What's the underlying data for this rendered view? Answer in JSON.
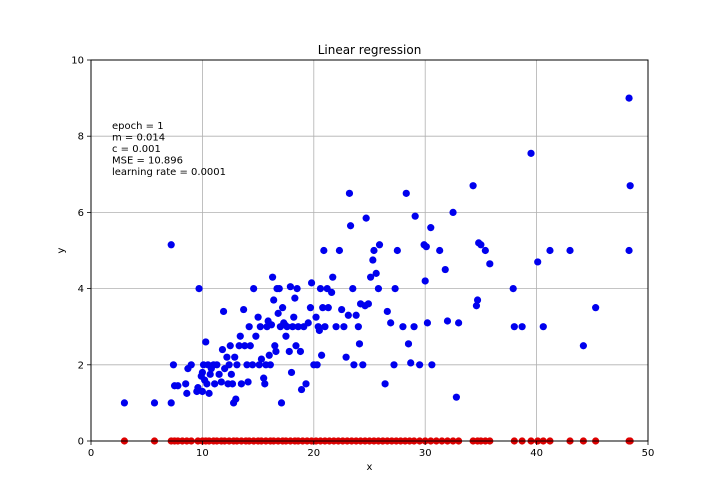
{
  "chart_data": {
    "type": "scatter",
    "title": "Linear regression",
    "xlabel": "x",
    "ylabel": "y",
    "xlim": [
      0,
      50
    ],
    "ylim": [
      0,
      10
    ],
    "xticks": [
      0,
      10,
      20,
      30,
      40,
      50
    ],
    "yticks": [
      0,
      2,
      4,
      6,
      8,
      10
    ],
    "grid": true,
    "annotations": [
      "epoch = 1",
      "m = 0.014",
      "c = 0.001",
      "MSE = 10.896",
      "learning rate = 0.0001"
    ],
    "series": [
      {
        "color": "#0000ee",
        "points": [
          [
            3.0,
            1.0
          ],
          [
            5.7,
            1.0
          ],
          [
            7.2,
            1.0
          ],
          [
            7.2,
            5.15
          ],
          [
            7.4,
            2.0
          ],
          [
            7.5,
            1.45
          ],
          [
            7.8,
            1.45
          ],
          [
            8.5,
            1.5
          ],
          [
            8.6,
            1.25
          ],
          [
            8.7,
            1.9
          ],
          [
            9.0,
            2.0
          ],
          [
            9.5,
            1.3
          ],
          [
            9.6,
            1.4
          ],
          [
            9.7,
            4.0
          ],
          [
            9.9,
            1.7
          ],
          [
            10.0,
            1.3
          ],
          [
            10.0,
            1.8
          ],
          [
            10.1,
            2.0
          ],
          [
            10.2,
            1.6
          ],
          [
            10.3,
            2.6
          ],
          [
            10.4,
            1.5
          ],
          [
            10.5,
            2.0
          ],
          [
            10.6,
            1.25
          ],
          [
            10.7,
            1.75
          ],
          [
            10.8,
            1.9
          ],
          [
            11.0,
            2.0
          ],
          [
            11.1,
            1.5
          ],
          [
            11.3,
            2.0
          ],
          [
            11.5,
            1.75
          ],
          [
            11.7,
            1.55
          ],
          [
            11.8,
            2.4
          ],
          [
            11.9,
            3.4
          ],
          [
            12.0,
            1.9
          ],
          [
            12.2,
            2.2
          ],
          [
            12.3,
            1.5
          ],
          [
            12.4,
            2.0
          ],
          [
            12.5,
            2.5
          ],
          [
            12.6,
            1.75
          ],
          [
            12.7,
            1.5
          ],
          [
            12.8,
            1.0
          ],
          [
            12.9,
            2.2
          ],
          [
            13.0,
            1.1
          ],
          [
            13.1,
            2.0
          ],
          [
            13.3,
            2.5
          ],
          [
            13.4,
            2.75
          ],
          [
            13.5,
            1.5
          ],
          [
            13.7,
            3.45
          ],
          [
            13.8,
            2.5
          ],
          [
            14.0,
            2.0
          ],
          [
            14.1,
            1.55
          ],
          [
            14.2,
            3.0
          ],
          [
            14.3,
            2.5
          ],
          [
            14.5,
            2.0
          ],
          [
            14.6,
            4.0
          ],
          [
            14.8,
            2.75
          ],
          [
            15.0,
            3.25
          ],
          [
            15.1,
            2.0
          ],
          [
            15.2,
            3.0
          ],
          [
            15.3,
            2.15
          ],
          [
            15.5,
            1.65
          ],
          [
            15.6,
            1.5
          ],
          [
            15.7,
            2.0
          ],
          [
            15.8,
            3.0
          ],
          [
            15.9,
            3.15
          ],
          [
            16.0,
            2.25
          ],
          [
            16.1,
            2.0
          ],
          [
            16.2,
            3.05
          ],
          [
            16.3,
            4.3
          ],
          [
            16.4,
            3.7
          ],
          [
            16.5,
            2.5
          ],
          [
            16.6,
            2.35
          ],
          [
            16.7,
            4.0
          ],
          [
            16.8,
            3.35
          ],
          [
            16.9,
            4.0
          ],
          [
            17.0,
            3.0
          ],
          [
            17.1,
            1.0
          ],
          [
            17.2,
            3.5
          ],
          [
            17.3,
            3.1
          ],
          [
            17.4,
            3.05
          ],
          [
            17.5,
            2.75
          ],
          [
            17.6,
            3.0
          ],
          [
            17.8,
            2.35
          ],
          [
            17.9,
            4.05
          ],
          [
            18.0,
            1.8
          ],
          [
            18.1,
            3.0
          ],
          [
            18.2,
            3.25
          ],
          [
            18.3,
            3.75
          ],
          [
            18.4,
            2.5
          ],
          [
            18.5,
            4.0
          ],
          [
            18.6,
            3.0
          ],
          [
            18.8,
            2.35
          ],
          [
            18.9,
            1.35
          ],
          [
            19.1,
            3.0
          ],
          [
            19.3,
            1.5
          ],
          [
            19.5,
            3.1
          ],
          [
            19.7,
            3.5
          ],
          [
            19.8,
            4.15
          ],
          [
            20.0,
            2.0
          ],
          [
            20.2,
            3.25
          ],
          [
            20.3,
            2.0
          ],
          [
            20.4,
            3.0
          ],
          [
            20.5,
            2.9
          ],
          [
            20.6,
            4.0
          ],
          [
            20.7,
            2.25
          ],
          [
            20.8,
            3.5
          ],
          [
            20.9,
            5.0
          ],
          [
            21.0,
            3.0
          ],
          [
            21.2,
            4.0
          ],
          [
            21.3,
            3.5
          ],
          [
            21.6,
            3.9
          ],
          [
            21.7,
            4.3
          ],
          [
            22.0,
            3.0
          ],
          [
            22.3,
            5.0
          ],
          [
            22.5,
            3.45
          ],
          [
            22.7,
            3.0
          ],
          [
            22.9,
            2.2
          ],
          [
            23.1,
            3.3
          ],
          [
            23.2,
            6.5
          ],
          [
            23.3,
            5.65
          ],
          [
            23.5,
            4.0
          ],
          [
            23.6,
            2.0
          ],
          [
            23.8,
            3.3
          ],
          [
            24.0,
            3.0
          ],
          [
            24.1,
            2.55
          ],
          [
            24.2,
            3.6
          ],
          [
            24.4,
            2.0
          ],
          [
            24.6,
            3.55
          ],
          [
            24.7,
            5.85
          ],
          [
            24.9,
            3.6
          ],
          [
            25.1,
            4.3
          ],
          [
            25.3,
            4.75
          ],
          [
            25.4,
            5.0
          ],
          [
            25.6,
            4.4
          ],
          [
            25.8,
            4.0
          ],
          [
            25.9,
            5.15
          ],
          [
            26.4,
            1.5
          ],
          [
            26.6,
            3.4
          ],
          [
            26.9,
            3.1
          ],
          [
            27.2,
            2.0
          ],
          [
            27.3,
            4.0
          ],
          [
            27.5,
            5.0
          ],
          [
            28.0,
            3.0
          ],
          [
            28.3,
            6.5
          ],
          [
            28.5,
            2.55
          ],
          [
            28.7,
            2.05
          ],
          [
            29.0,
            3.0
          ],
          [
            29.1,
            5.9
          ],
          [
            29.5,
            2.0
          ],
          [
            29.9,
            5.15
          ],
          [
            30.0,
            4.2
          ],
          [
            30.1,
            5.1
          ],
          [
            30.2,
            3.1
          ],
          [
            30.5,
            5.6
          ],
          [
            30.6,
            2.0
          ],
          [
            31.3,
            5.0
          ],
          [
            31.8,
            4.5
          ],
          [
            32.0,
            3.15
          ],
          [
            32.5,
            6.0
          ],
          [
            32.8,
            1.15
          ],
          [
            33.0,
            3.1
          ],
          [
            34.3,
            6.7
          ],
          [
            34.6,
            3.55
          ],
          [
            34.7,
            3.7
          ],
          [
            34.8,
            5.2
          ],
          [
            35.0,
            5.15
          ],
          [
            35.4,
            5.0
          ],
          [
            35.8,
            4.65
          ],
          [
            37.9,
            4.0
          ],
          [
            38.0,
            3.0
          ],
          [
            38.7,
            3.0
          ],
          [
            39.5,
            7.55
          ],
          [
            40.1,
            4.7
          ],
          [
            40.6,
            3.0
          ],
          [
            41.2,
            5.0
          ],
          [
            43.0,
            5.0
          ],
          [
            44.2,
            2.5
          ],
          [
            45.3,
            3.5
          ],
          [
            48.3,
            9.0
          ],
          [
            48.3,
            5.0
          ],
          [
            48.4,
            6.7
          ]
        ]
      },
      {
        "color": "#dd0000",
        "points": [
          [
            3.0,
            0.0
          ],
          [
            5.7,
            0.0
          ],
          [
            7.2,
            0.0
          ],
          [
            7.5,
            0.0
          ],
          [
            7.8,
            0.0
          ],
          [
            8.2,
            0.0
          ],
          [
            8.6,
            0.0
          ],
          [
            9.0,
            0.0
          ],
          [
            9.6,
            0.0
          ],
          [
            10.0,
            0.0
          ],
          [
            10.3,
            0.0
          ],
          [
            10.6,
            0.0
          ],
          [
            11.0,
            0.0
          ],
          [
            11.3,
            0.0
          ],
          [
            11.7,
            0.0
          ],
          [
            12.0,
            0.0
          ],
          [
            12.4,
            0.0
          ],
          [
            12.8,
            0.0
          ],
          [
            13.1,
            0.0
          ],
          [
            13.5,
            0.0
          ],
          [
            13.9,
            0.0
          ],
          [
            14.2,
            0.0
          ],
          [
            14.6,
            0.0
          ],
          [
            15.0,
            0.0
          ],
          [
            15.3,
            0.0
          ],
          [
            15.7,
            0.0
          ],
          [
            16.1,
            0.0
          ],
          [
            16.4,
            0.0
          ],
          [
            16.8,
            0.0
          ],
          [
            17.2,
            0.0
          ],
          [
            17.5,
            0.0
          ],
          [
            17.9,
            0.0
          ],
          [
            18.3,
            0.0
          ],
          [
            18.6,
            0.0
          ],
          [
            19.0,
            0.0
          ],
          [
            19.4,
            0.0
          ],
          [
            19.8,
            0.0
          ],
          [
            20.2,
            0.0
          ],
          [
            20.6,
            0.0
          ],
          [
            21.0,
            0.0
          ],
          [
            21.4,
            0.0
          ],
          [
            21.8,
            0.0
          ],
          [
            22.2,
            0.0
          ],
          [
            22.6,
            0.0
          ],
          [
            23.0,
            0.0
          ],
          [
            23.4,
            0.0
          ],
          [
            23.8,
            0.0
          ],
          [
            24.2,
            0.0
          ],
          [
            24.6,
            0.0
          ],
          [
            25.0,
            0.0
          ],
          [
            25.4,
            0.0
          ],
          [
            25.8,
            0.0
          ],
          [
            26.2,
            0.0
          ],
          [
            26.6,
            0.0
          ],
          [
            27.0,
            0.0
          ],
          [
            27.4,
            0.0
          ],
          [
            27.8,
            0.0
          ],
          [
            28.2,
            0.0
          ],
          [
            28.6,
            0.0
          ],
          [
            29.0,
            0.0
          ],
          [
            29.5,
            0.0
          ],
          [
            30.0,
            0.0
          ],
          [
            30.5,
            0.0
          ],
          [
            31.0,
            0.0
          ],
          [
            31.5,
            0.0
          ],
          [
            32.0,
            0.0
          ],
          [
            32.5,
            0.0
          ],
          [
            33.0,
            0.0
          ],
          [
            34.3,
            0.0
          ],
          [
            34.7,
            0.0
          ],
          [
            35.0,
            0.0
          ],
          [
            35.4,
            0.0
          ],
          [
            35.8,
            0.0
          ],
          [
            38.0,
            0.0
          ],
          [
            38.7,
            0.0
          ],
          [
            39.5,
            0.0
          ],
          [
            40.1,
            0.0
          ],
          [
            40.6,
            0.0
          ],
          [
            41.2,
            0.0
          ],
          [
            43.0,
            0.0
          ],
          [
            44.2,
            0.0
          ],
          [
            45.3,
            0.0
          ],
          [
            48.3,
            0.0
          ],
          [
            48.4,
            0.0
          ]
        ]
      }
    ]
  }
}
